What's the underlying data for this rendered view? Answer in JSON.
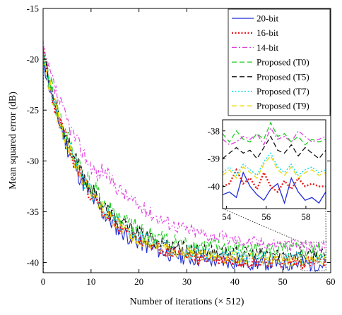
{
  "chart_data": {
    "type": "line",
    "xlabel": "Number of iterations (× 512)",
    "ylabel": "Mean squared error (dB)",
    "xlim": [
      0,
      60
    ],
    "ylim": [
      -41,
      -15
    ],
    "xticks": [
      0,
      10,
      20,
      30,
      40,
      50,
      60
    ],
    "yticks": [
      -15,
      -20,
      -25,
      -30,
      -35,
      -40
    ],
    "grid": false,
    "legend_position": "top-right",
    "series": [
      {
        "name": "20-bit",
        "color": "#1f2bd6",
        "dash": "solid",
        "start": -19.8,
        "slow": 0,
        "floor": -40.2,
        "amp": 0.7,
        "seed": 11
      },
      {
        "name": "16-bit",
        "color": "#e41a1c",
        "dash": "dotted",
        "start": -19.6,
        "slow": 0,
        "floor": -40.0,
        "amp": 0.6,
        "seed": 23
      },
      {
        "name": "14-bit",
        "color": "#e040e0",
        "dash": "dashdot",
        "start": -19.2,
        "slow": 1,
        "floor": -38.6,
        "amp": 0.6,
        "seed": 37
      },
      {
        "name": "Proposed (T0)",
        "color": "#22cc22",
        "dash": "dashed",
        "start": -19.3,
        "slow": 0,
        "floor": -38.9,
        "amp": 0.8,
        "seed": 41
      },
      {
        "name": "Proposed (T5)",
        "color": "#111111",
        "dash": "dashed",
        "start": -19.5,
        "slow": 0,
        "floor": -39.3,
        "amp": 0.6,
        "seed": 53
      },
      {
        "name": "Proposed (T7)",
        "color": "#00d8e8",
        "dash": "dotted",
        "start": -19.7,
        "slow": 0,
        "floor": -39.6,
        "amp": 0.6,
        "seed": 67
      },
      {
        "name": "Proposed (T9)",
        "color": "#e8d800",
        "dash": "dashed",
        "start": -19.8,
        "slow": 0,
        "floor": -39.8,
        "amp": 0.6,
        "seed": 79
      }
    ],
    "inset": {
      "xlim": [
        53.8,
        59
      ],
      "ylim": [
        -40.8,
        -37.6
      ],
      "xticks": [
        54,
        56,
        58
      ],
      "yticks": [
        -38,
        -39,
        -40
      ],
      "series_values": [
        {
          "name": "20-bit",
          "values": [
            -40.3,
            -40.2,
            -40.4,
            -39.5,
            -40.0,
            -40.3,
            -40.5,
            -40.1,
            -39.9,
            -40.6,
            -39.7,
            -40.2,
            -40.5,
            -40.4,
            -40.6,
            -40.2
          ]
        },
        {
          "name": "16-bit",
          "values": [
            -40.0,
            -39.9,
            -39.4,
            -39.9,
            -39.7,
            -40.1,
            -39.5,
            -40.0,
            -40.2,
            -39.8,
            -40.1,
            -39.7,
            -40.0,
            -39.9,
            -40.0,
            -40.0
          ]
        },
        {
          "name": "14-bit",
          "values": [
            -38.3,
            -38.5,
            -38.4,
            -38.2,
            -38.3,
            -38.1,
            -38.5,
            -37.9,
            -38.3,
            -38.2,
            -38.4,
            -38.0,
            -38.2,
            -38.4,
            -38.3,
            -38.2
          ]
        },
        {
          "name": "Proposed (T0)",
          "values": [
            -38.1,
            -38.4,
            -38.0,
            -38.3,
            -38.4,
            -38.1,
            -38.3,
            -37.7,
            -38.2,
            -38.1,
            -38.4,
            -38.2,
            -38.5,
            -38.3,
            -38.4,
            -38.3
          ]
        },
        {
          "name": "Proposed (T5)",
          "values": [
            -39.0,
            -38.8,
            -38.6,
            -38.8,
            -38.7,
            -39.0,
            -38.6,
            -38.2,
            -38.7,
            -38.8,
            -38.5,
            -38.9,
            -38.6,
            -38.8,
            -39.0,
            -38.7
          ]
        },
        {
          "name": "Proposed (T7)",
          "values": [
            -39.5,
            -39.3,
            -39.6,
            -39.2,
            -39.4,
            -39.6,
            -39.1,
            -38.8,
            -39.3,
            -39.5,
            -39.2,
            -39.6,
            -39.4,
            -39.3,
            -39.5,
            -39.4
          ]
        },
        {
          "name": "Proposed (T9)",
          "values": [
            -39.6,
            -39.4,
            -39.7,
            -39.3,
            -39.5,
            -39.7,
            -39.2,
            -38.9,
            -39.4,
            -39.6,
            -39.3,
            -39.7,
            -39.5,
            -39.4,
            -39.6,
            -39.5
          ]
        }
      ]
    }
  }
}
